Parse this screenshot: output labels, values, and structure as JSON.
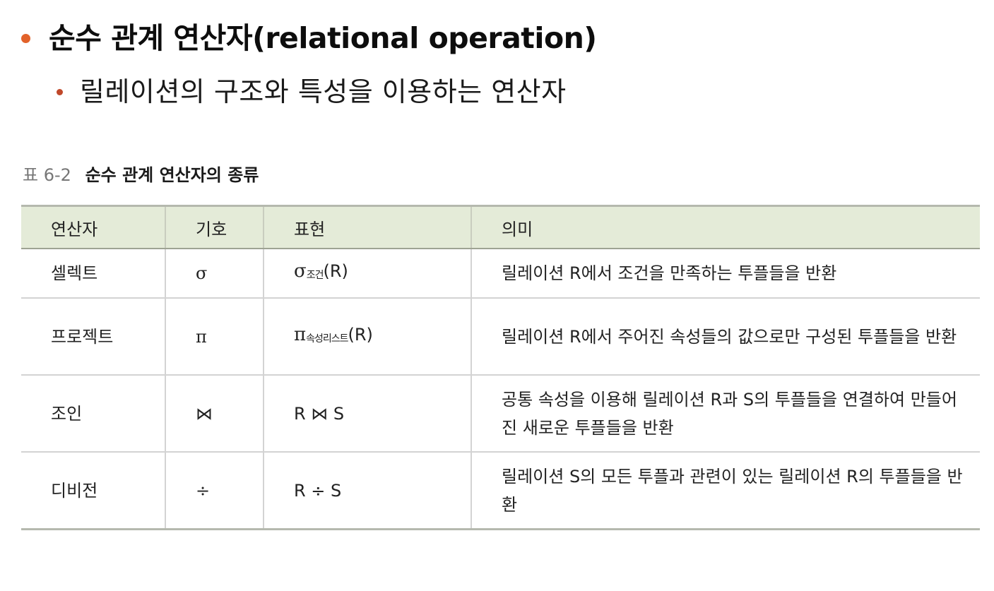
{
  "heading": "순수 관계 연산자(relational operation)",
  "subheading": "릴레이션의 구조와 특성을 이용하는 연산자",
  "caption": {
    "number": "표 6-2",
    "title": "순수 관계 연산자의 종류"
  },
  "table": {
    "headers": [
      "연산자",
      "기호",
      "표현",
      "의미"
    ],
    "rows": [
      {
        "operator": "셀렉트",
        "symbol": "σ",
        "expression": {
          "main": "σ",
          "sub": "조건",
          "arg": "(R)"
        },
        "meaning": "릴레이션 R에서 조건을 만족하는 투플들을 반환"
      },
      {
        "operator": "프로젝트",
        "symbol": "π",
        "expression": {
          "main": "π",
          "sub": "속성리스트",
          "arg": "(R)"
        },
        "meaning": "릴레이션 R에서 주어진 속성들의 값으로만 구성된 투플들을 반환"
      },
      {
        "operator": "조인",
        "symbol": "⋈",
        "expression": {
          "text": "R ⋈ S"
        },
        "meaning": "공통 속성을 이용해 릴레이션 R과 S의 투플들을 연결하여 만들어진 새로운 투플들을 반환"
      },
      {
        "operator": "디비전",
        "symbol": "÷",
        "expression": {
          "text": "R ÷ S"
        },
        "meaning": "릴레이션 S의 모든 투플과 관련이 있는 릴레이션 R의 투플들을 반환"
      }
    ]
  },
  "colors": {
    "bullet_primary": "#e2622a",
    "bullet_secondary": "#c0482a",
    "table_header_bg": "#e4ebd8"
  }
}
